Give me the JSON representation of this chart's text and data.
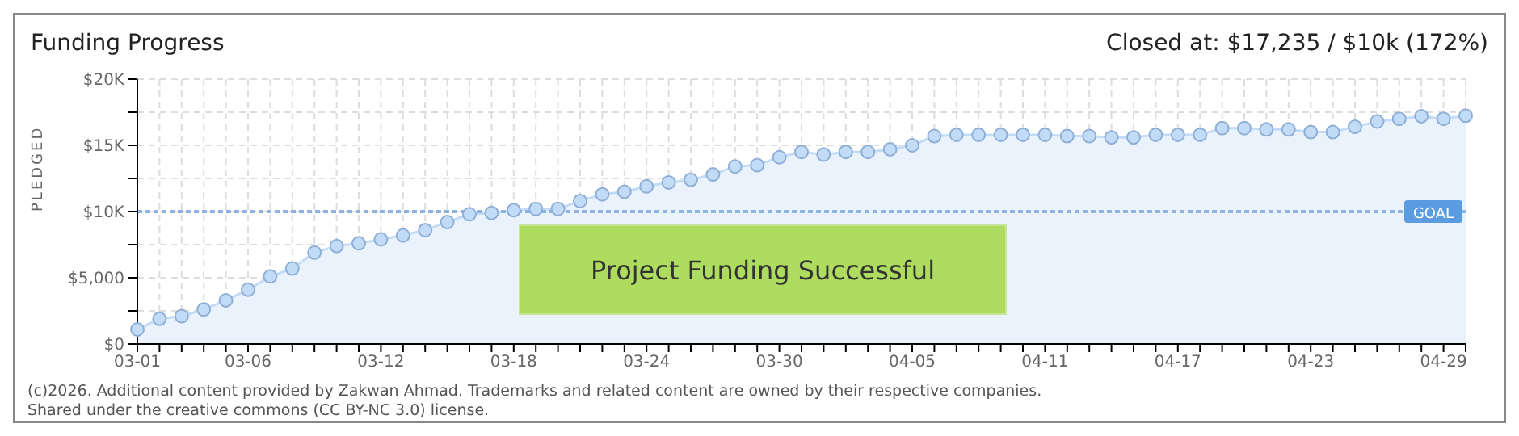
{
  "chart_data": {
    "type": "area",
    "title": "Funding Progress",
    "subtitle": "Closed at: $17,235 / $10k (172%)",
    "ylabel": "PLEDGED",
    "categories": [
      "03-01",
      null,
      null,
      null,
      null,
      "03-06",
      null,
      null,
      null,
      null,
      null,
      "03-12",
      null,
      null,
      null,
      null,
      null,
      "03-18",
      null,
      null,
      null,
      null,
      null,
      "03-24",
      null,
      null,
      null,
      null,
      null,
      "03-30",
      null,
      null,
      null,
      null,
      null,
      "04-05",
      null,
      null,
      null,
      null,
      null,
      "04-11",
      null,
      null,
      null,
      null,
      null,
      "04-17",
      null,
      null,
      null,
      null,
      null,
      "04-23",
      null,
      null,
      null,
      null,
      null,
      "04-29",
      null
    ],
    "series": [
      {
        "color": "#c2dbf7",
        "values": [
          1100,
          1900,
          2100,
          2600,
          3300,
          4100,
          5100,
          5700,
          6900,
          7400,
          7600,
          7900,
          8200,
          8600,
          9200,
          9800,
          9900,
          10100,
          10200,
          10200,
          10800,
          11300,
          11500,
          11900,
          12200,
          12400,
          12800,
          13400,
          13500,
          14100,
          14500,
          14300,
          14500,
          14500,
          14700,
          15000,
          15700,
          15800,
          15800,
          15800,
          15800,
          15800,
          15700,
          15700,
          15600,
          15600,
          15800,
          15800,
          15800,
          16300,
          16300,
          16200,
          16200,
          16000,
          16000,
          16400,
          16800,
          17000,
          17200,
          17000,
          17235
        ]
      }
    ],
    "ylim": [
      0,
      20000
    ],
    "yticks": [
      {
        "value": 0,
        "label": "$0"
      },
      {
        "value": 2500,
        "label": null
      },
      {
        "value": 5000,
        "label": "$5,000"
      },
      {
        "value": 7500,
        "label": null
      },
      {
        "value": 10000,
        "label": "$10K"
      },
      {
        "value": 12500,
        "label": null
      },
      {
        "value": 15000,
        "label": "$15K"
      },
      {
        "value": 17500,
        "label": null
      },
      {
        "value": 20000,
        "label": "$20K"
      }
    ],
    "grid": true,
    "marker": "circle",
    "ref_lines": [
      {
        "axis": "y",
        "value": 10000,
        "label": "GOAL",
        "color": "#8fb3e0",
        "line_style": "dotted"
      }
    ],
    "annotations": [
      "Project Funding Successful",
      "(c)2026. Additional content provided by Zakwan Ahmad. Trademarks and related content are owned by their respective companies.",
      "Shared under the creative commons (CC BY-NC 3.0) license."
    ]
  }
}
